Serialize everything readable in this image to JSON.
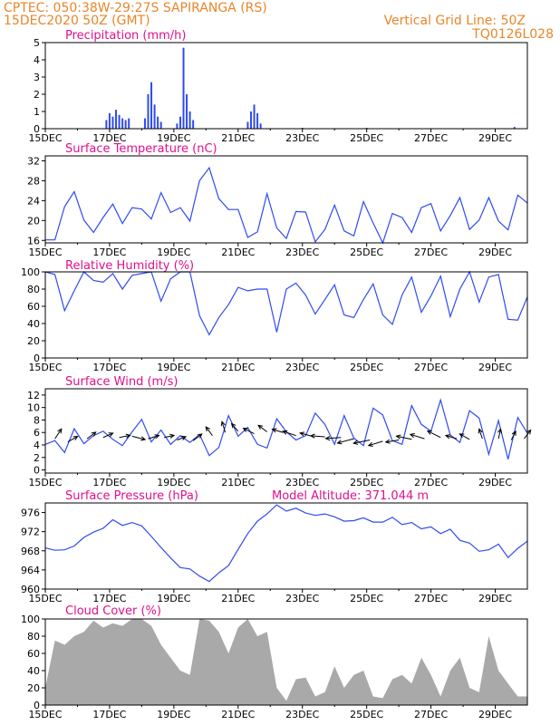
{
  "header": {
    "line1": "CPTEC:   050:38W-29:27S   SAPIRANGA (RS)",
    "line2": "15DEC2020 50Z (GMT)",
    "right1": "Vertical Grid Line: 50Z",
    "right2": "TQ0126L028"
  },
  "colors": {
    "header": "#e8862a",
    "title": "#e0108c",
    "line": "#2f4bf0",
    "cloud": "#a9a9a9"
  },
  "chart_data": [
    {
      "type": "bar",
      "title": "Precipitation (mm/h)",
      "x_tick_labels": [
        "15DEC",
        "17DEC",
        "19DEC",
        "21DEC",
        "23DEC",
        "25DEC",
        "27DEC",
        "29DEC"
      ],
      "ylim": [
        0,
        5
      ],
      "y_ticks": [
        0,
        1,
        2,
        3,
        4,
        5
      ],
      "series": [
        {
          "values": [
            [
              16.9,
              0.5
            ],
            [
              17.0,
              0.9
            ],
            [
              17.1,
              0.7
            ],
            [
              17.2,
              1.1
            ],
            [
              17.3,
              0.8
            ],
            [
              17.4,
              0.6
            ],
            [
              17.5,
              0.5
            ],
            [
              17.6,
              0.6
            ],
            [
              18.1,
              0.6
            ],
            [
              18.2,
              2.0
            ],
            [
              18.3,
              2.7
            ],
            [
              18.4,
              1.4
            ],
            [
              18.5,
              0.7
            ],
            [
              18.6,
              0.4
            ],
            [
              19.1,
              0.3
            ],
            [
              19.2,
              0.7
            ],
            [
              19.3,
              4.7
            ],
            [
              19.4,
              2.0
            ],
            [
              19.5,
              1.0
            ],
            [
              19.6,
              0.5
            ],
            [
              21.3,
              0.4
            ],
            [
              21.4,
              1.0
            ],
            [
              21.5,
              1.4
            ],
            [
              21.6,
              0.9
            ],
            [
              21.7,
              0.3
            ],
            [
              23.0,
              0.05
            ],
            [
              25.0,
              0.05
            ],
            [
              29.6,
              0.1
            ]
          ]
        }
      ]
    },
    {
      "type": "line",
      "title": "Surface Temperature (nC)",
      "x_tick_labels": [
        "15DEC",
        "17DEC",
        "19DEC",
        "21DEC",
        "23DEC",
        "25DEC",
        "27DEC",
        "29DEC"
      ],
      "ylim": [
        15.5,
        33
      ],
      "y_ticks": [
        16,
        20,
        24,
        28,
        32
      ],
      "series": [
        {
          "x": [
            15.0,
            15.3,
            15.6,
            15.9,
            16.2,
            16.5,
            16.8,
            17.1,
            17.4,
            17.7,
            18.0,
            18.3,
            18.6,
            18.9,
            19.2,
            19.5,
            19.8,
            20.1,
            20.4,
            20.7,
            21.0,
            21.3,
            21.6,
            21.9,
            22.2,
            22.5,
            22.8,
            23.1,
            23.4,
            23.7,
            24.0,
            24.3,
            24.6,
            24.9,
            25.2,
            25.5,
            25.8,
            26.1,
            26.4,
            26.7,
            27.0,
            27.3,
            27.6,
            27.9,
            28.2,
            28.5,
            28.8,
            29.1,
            29.4,
            29.7,
            30.0
          ],
          "y": [
            16.1,
            16.1,
            22.8,
            25.8,
            20.1,
            17.6,
            20.6,
            23.3,
            19.4,
            22.6,
            22.3,
            20.3,
            25.6,
            21.6,
            22.6,
            19.9,
            28.0,
            30.6,
            24.4,
            22.2,
            22.2,
            16.6,
            17.7,
            25.4,
            18.5,
            16.4,
            21.8,
            21.7,
            15.7,
            18.2,
            23.1,
            17.9,
            16.9,
            23.8,
            19.5,
            15.5,
            21.4,
            20.6,
            17.6,
            22.6,
            23.4,
            17.9,
            21.0,
            24.6,
            18.2,
            20.1,
            24.6,
            19.9,
            18.1,
            25.1,
            23.5
          ]
        }
      ]
    },
    {
      "type": "line",
      "title": "Relative Humidity (%)",
      "x_tick_labels": [
        "15DEC",
        "17DEC",
        "19DEC",
        "21DEC",
        "23DEC",
        "25DEC",
        "27DEC",
        "29DEC"
      ],
      "ylim": [
        0,
        100
      ],
      "y_ticks": [
        0,
        20,
        40,
        60,
        80,
        100
      ],
      "series": [
        {
          "x": [
            15.0,
            15.3,
            15.6,
            15.9,
            16.2,
            16.5,
            16.8,
            17.1,
            17.4,
            17.7,
            18.0,
            18.3,
            18.6,
            18.9,
            19.2,
            19.5,
            19.8,
            20.1,
            20.4,
            20.7,
            21.0,
            21.3,
            21.6,
            21.9,
            22.2,
            22.5,
            22.8,
            23.1,
            23.4,
            23.7,
            24.0,
            24.3,
            24.6,
            24.9,
            25.2,
            25.5,
            25.8,
            26.1,
            26.4,
            26.7,
            27.0,
            27.3,
            27.6,
            27.9,
            28.2,
            28.5,
            28.8,
            29.1,
            29.4,
            29.7,
            30.0
          ],
          "y": [
            100,
            97,
            55,
            78,
            100,
            90,
            88,
            98,
            80,
            96,
            98,
            100,
            66,
            92,
            100,
            100,
            49,
            27,
            47,
            62,
            82,
            78,
            80,
            80,
            30,
            80,
            87,
            73,
            51,
            68,
            85,
            50,
            47,
            68,
            86,
            50,
            39,
            73,
            94,
            53,
            72,
            95,
            48,
            80,
            100,
            65,
            94,
            97,
            45,
            44,
            71
          ]
        }
      ]
    },
    {
      "type": "line",
      "title": "Surface Wind (m/s)",
      "x_tick_labels": [
        "15DEC",
        "17DEC",
        "19DEC",
        "21DEC",
        "23DEC",
        "25DEC",
        "27DEC",
        "29DEC"
      ],
      "ylim": [
        -0.5,
        13
      ],
      "y_ticks": [
        0,
        2,
        4,
        6,
        8,
        10,
        12
      ],
      "series": [
        {
          "x": [
            15.0,
            15.3,
            15.6,
            15.9,
            16.2,
            16.5,
            16.8,
            17.1,
            17.4,
            17.7,
            18.0,
            18.3,
            18.6,
            18.9,
            19.2,
            19.5,
            19.8,
            20.1,
            20.4,
            20.7,
            21.0,
            21.3,
            21.6,
            21.9,
            22.2,
            22.5,
            22.8,
            23.1,
            23.4,
            23.7,
            24.0,
            24.3,
            24.6,
            24.9,
            25.2,
            25.5,
            25.8,
            26.1,
            26.4,
            26.7,
            27.0,
            27.3,
            27.6,
            27.9,
            28.2,
            28.5,
            28.8,
            29.1,
            29.4,
            29.7,
            30.0
          ],
          "y": [
            4.1,
            4.7,
            2.8,
            6.6,
            4.2,
            5.5,
            6.2,
            4.9,
            3.9,
            6.1,
            8.1,
            4.5,
            6.4,
            4.1,
            5.5,
            4.4,
            5.7,
            2.3,
            3.6,
            8.7,
            5.4,
            6.8,
            4.1,
            3.5,
            8.2,
            6.1,
            4.8,
            5.5,
            9.1,
            7.3,
            4.1,
            8.7,
            5.1,
            3.9,
            9.9,
            8.8,
            4.7,
            4.1,
            10.3,
            7.3,
            6.2,
            11.2,
            5.6,
            4.4,
            9.5,
            8.3,
            2.5,
            7.9,
            1.7,
            8.4,
            5.9
          ]
        }
      ],
      "wind_arrows": [
        [
          15.3,
          5,
          0.6,
          0.9
        ],
        [
          15.7,
          4.5,
          0.9,
          0.5
        ],
        [
          16.3,
          5,
          0.8,
          0.6
        ],
        [
          16.8,
          5.2,
          0.9,
          0.4
        ],
        [
          17.3,
          5.2,
          1.0,
          0.2
        ],
        [
          17.7,
          5.4,
          1.2,
          -0.3
        ],
        [
          18.2,
          5.0,
          1.0,
          0.3
        ],
        [
          18.7,
          5.2,
          0.9,
          0.2
        ],
        [
          19.1,
          4.8,
          0.8,
          0.3
        ],
        [
          19.6,
          4.7,
          0.8,
          0.6
        ],
        [
          20.2,
          5.5,
          -0.6,
          0.8
        ],
        [
          20.6,
          6.0,
          -0.3,
          1.0
        ],
        [
          21.0,
          6.2,
          -0.6,
          0.7
        ],
        [
          21.5,
          5.8,
          -1.0,
          0.5
        ],
        [
          21.9,
          6.1,
          -0.8,
          0.6
        ],
        [
          22.4,
          6.0,
          -1.0,
          0.3
        ],
        [
          22.8,
          5.5,
          -1.2,
          0.4
        ],
        [
          23.3,
          5.4,
          -1.1,
          0.3
        ],
        [
          23.7,
          5.3,
          -1.3,
          0.1
        ],
        [
          24.2,
          5.2,
          -1.4,
          -0.1
        ],
        [
          24.6,
          5.0,
          -1.5,
          -0.4
        ],
        [
          25.1,
          4.8,
          -1.5,
          -0.3
        ],
        [
          25.5,
          4.6,
          -1.3,
          -0.4
        ],
        [
          26.0,
          4.8,
          -1.2,
          -0.2
        ],
        [
          26.4,
          4.9,
          -1.4,
          0.3
        ],
        [
          26.8,
          5.0,
          -1.3,
          0.4
        ],
        [
          27.3,
          5.2,
          -1.2,
          0.6
        ],
        [
          27.8,
          5.0,
          -1.0,
          0.3
        ],
        [
          28.2,
          4.9,
          -0.9,
          0.5
        ],
        [
          28.6,
          5.0,
          -0.3,
          0.9
        ],
        [
          29.1,
          5.0,
          0.2,
          0.9
        ],
        [
          29.5,
          4.8,
          0.4,
          0.8
        ],
        [
          29.9,
          5.0,
          0.6,
          0.8
        ]
      ]
    },
    {
      "type": "line",
      "title": "Surface Pressure (hPa)",
      "subtitle": "Model Altitude: 371.044 m",
      "x_tick_labels": [
        "15DEC",
        "17DEC",
        "19DEC",
        "21DEC",
        "23DEC",
        "25DEC",
        "27DEC",
        "29DEC"
      ],
      "ylim": [
        960,
        978
      ],
      "y_ticks": [
        960,
        964,
        968,
        972,
        976
      ],
      "series": [
        {
          "x": [
            15.0,
            15.3,
            15.6,
            15.9,
            16.2,
            16.5,
            16.8,
            17.1,
            17.4,
            17.7,
            18.0,
            18.3,
            18.6,
            18.9,
            19.2,
            19.5,
            19.8,
            20.1,
            20.4,
            20.7,
            21.0,
            21.3,
            21.6,
            21.9,
            22.2,
            22.5,
            22.8,
            23.1,
            23.4,
            23.7,
            24.0,
            24.3,
            24.6,
            24.9,
            25.2,
            25.5,
            25.8,
            26.1,
            26.4,
            26.7,
            27.0,
            27.3,
            27.6,
            27.9,
            28.2,
            28.5,
            28.8,
            29.1,
            29.4,
            29.7,
            30.0
          ],
          "y": [
            968.6,
            968.1,
            968.2,
            969.0,
            970.8,
            971.9,
            972.7,
            974.5,
            973.3,
            973.9,
            973.2,
            971.0,
            968.7,
            966.5,
            964.5,
            964.2,
            962.7,
            961.6,
            963.4,
            964.9,
            968.3,
            971.6,
            974.2,
            975.7,
            977.6,
            976.3,
            976.9,
            975.9,
            975.4,
            975.7,
            975.1,
            974.2,
            974.3,
            974.9,
            974.0,
            974.0,
            975.0,
            973.5,
            973.9,
            972.6,
            973.0,
            971.6,
            972.5,
            970.2,
            969.6,
            967.9,
            968.2,
            969.4,
            966.6,
            968.5,
            970.0
          ]
        }
      ]
    },
    {
      "type": "area",
      "title": "Cloud Cover (%)",
      "x_tick_labels": [
        "15DEC",
        "17DEC",
        "19DEC",
        "21DEC",
        "23DEC",
        "25DEC",
        "27DEC",
        "29DEC"
      ],
      "ylim": [
        0,
        100
      ],
      "y_ticks": [
        0,
        20,
        40,
        60,
        80,
        100
      ],
      "series": [
        {
          "x": [
            15.0,
            15.3,
            15.6,
            15.9,
            16.2,
            16.5,
            16.8,
            17.1,
            17.4,
            17.7,
            18.0,
            18.3,
            18.6,
            18.9,
            19.2,
            19.5,
            19.8,
            20.1,
            20.4,
            20.7,
            21.0,
            21.3,
            21.6,
            21.9,
            22.2,
            22.5,
            22.8,
            23.1,
            23.4,
            23.7,
            24.0,
            24.3,
            24.6,
            24.9,
            25.2,
            25.5,
            25.8,
            26.1,
            26.4,
            26.7,
            27.0,
            27.3,
            27.6,
            27.9,
            28.2,
            28.5,
            28.8,
            29.1,
            29.4,
            29.7,
            30.0
          ],
          "y": [
            20,
            75,
            70,
            80,
            85,
            98,
            90,
            95,
            92,
            100,
            100,
            92,
            70,
            55,
            40,
            35,
            100,
            98,
            85,
            60,
            90,
            100,
            80,
            85,
            20,
            5,
            30,
            32,
            10,
            15,
            45,
            20,
            35,
            40,
            10,
            8,
            30,
            35,
            25,
            55,
            35,
            10,
            40,
            55,
            20,
            15,
            80,
            40,
            25,
            10,
            10
          ]
        }
      ]
    }
  ]
}
